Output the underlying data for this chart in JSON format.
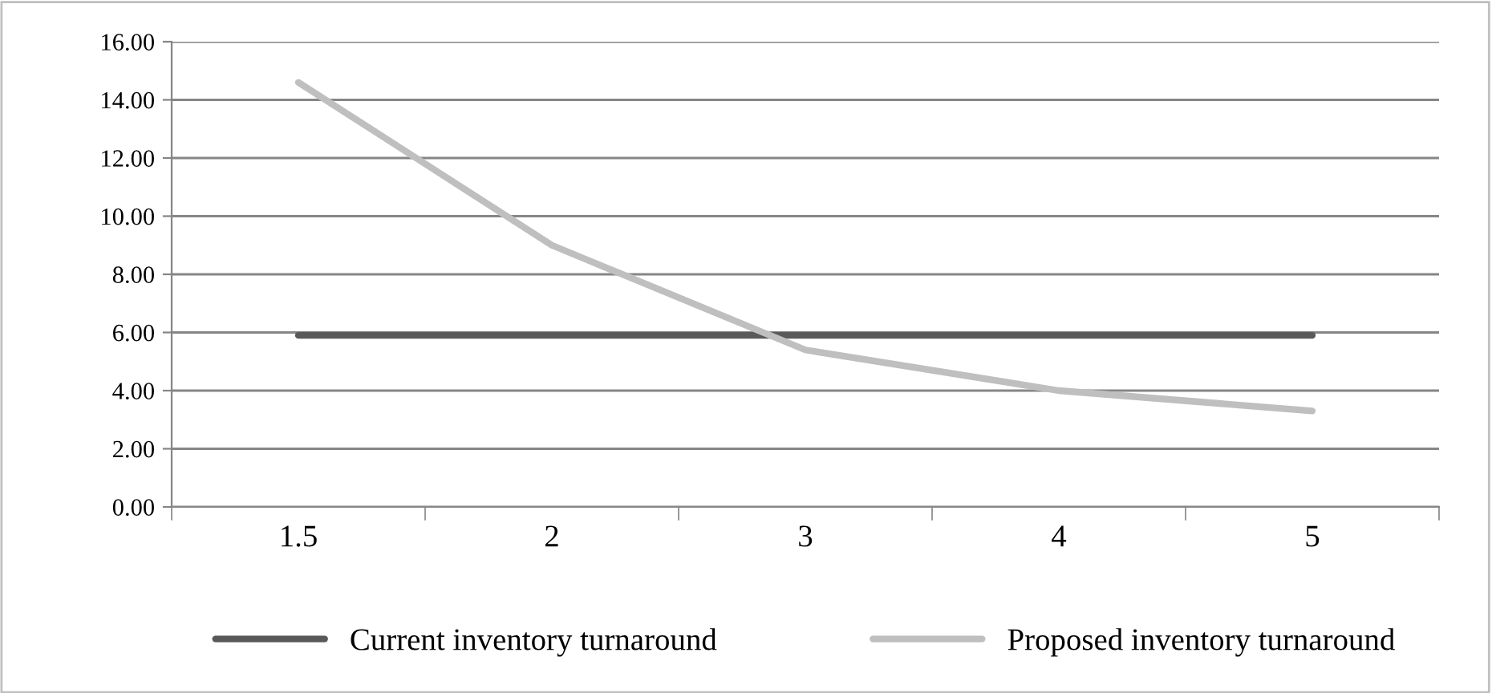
{
  "chart_data": {
    "type": "line",
    "categories": [
      "1.5",
      "2",
      "3",
      "4",
      "5"
    ],
    "series": [
      {
        "name": "Current inventory turnaround",
        "color": "#595959",
        "values": [
          5.9,
          5.9,
          5.9,
          5.9,
          5.9
        ]
      },
      {
        "name": "Proposed inventory turnaround",
        "color": "#bfbfbf",
        "values": [
          14.6,
          9.0,
          5.4,
          4.0,
          3.3
        ]
      }
    ],
    "ylim": [
      0,
      16
    ],
    "yticks": [
      {
        "value": 0,
        "label": "0.00"
      },
      {
        "value": 2,
        "label": "2.00"
      },
      {
        "value": 4,
        "label": "4.00"
      },
      {
        "value": 6,
        "label": "6.00"
      },
      {
        "value": 8,
        "label": "8.00"
      },
      {
        "value": 10,
        "label": "10.00"
      },
      {
        "value": 12,
        "label": "12.00"
      },
      {
        "value": 14,
        "label": "14.00"
      },
      {
        "value": 16,
        "label": "16.00"
      }
    ],
    "grid": "y",
    "legend": "bottom",
    "marker": "none",
    "line_style": "solid"
  }
}
